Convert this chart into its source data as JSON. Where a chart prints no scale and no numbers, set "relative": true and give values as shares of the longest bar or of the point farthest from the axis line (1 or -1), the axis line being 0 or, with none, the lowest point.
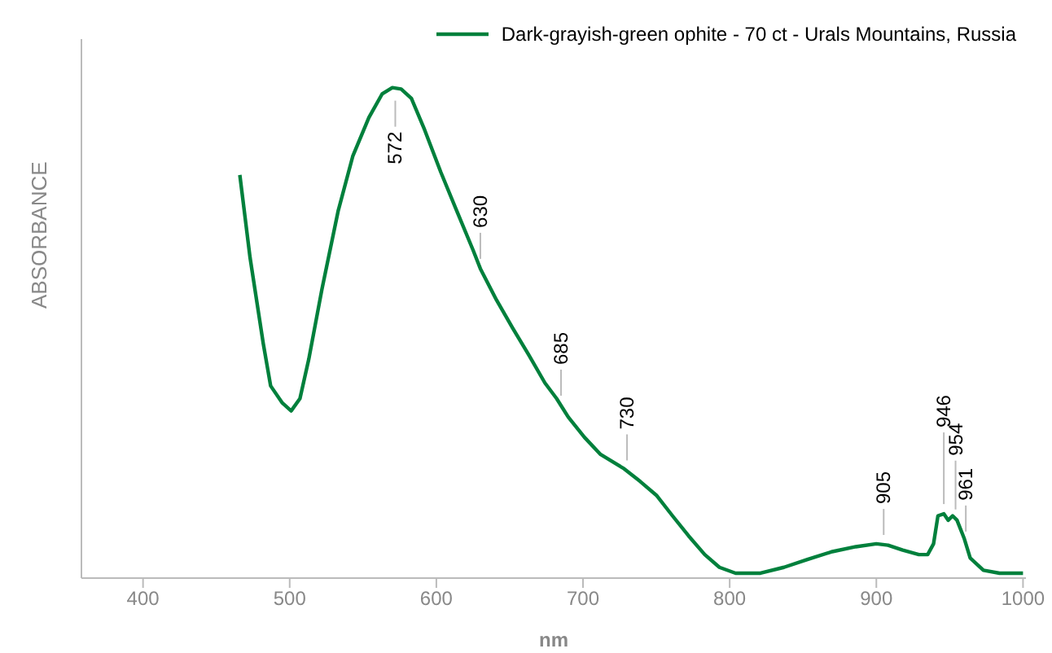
{
  "chart_data": {
    "type": "line",
    "relative": true,
    "xlabel": "nm",
    "ylabel": "ABSORBANCE",
    "xlim": [
      358,
      1002
    ],
    "xticks": [
      400,
      500,
      600,
      700,
      800,
      900,
      1000
    ],
    "legend": "top right",
    "marker": "none",
    "line_style": "solid",
    "series": [
      {
        "name": "Dark-grayish-green ophite - 70 ct - Urals Mountains, Russia",
        "color": "#00803c",
        "x": [
          466,
          473,
          482,
          487,
          495,
          501,
          507,
          513,
          522,
          533,
          543,
          554,
          563,
          570,
          576,
          583,
          592,
          603,
          614,
          625,
          630,
          641,
          652,
          663,
          674,
          682,
          690,
          701,
          712,
          728,
          739,
          750,
          761,
          772,
          783,
          793,
          804,
          821,
          837,
          853,
          870,
          886,
          900,
          908,
          918,
          929,
          935,
          939,
          942,
          946,
          949,
          952,
          955,
          960,
          964,
          973,
          984,
          1000
        ],
        "values": [
          0.822,
          0.653,
          0.478,
          0.392,
          0.357,
          0.341,
          0.366,
          0.446,
          0.589,
          0.748,
          0.86,
          0.939,
          0.987,
          1.0,
          0.997,
          0.978,
          0.914,
          0.828,
          0.748,
          0.669,
          0.631,
          0.567,
          0.51,
          0.455,
          0.398,
          0.366,
          0.328,
          0.287,
          0.252,
          0.223,
          0.197,
          0.169,
          0.127,
          0.086,
          0.048,
          0.022,
          0.01,
          0.01,
          0.022,
          0.038,
          0.054,
          0.064,
          0.07,
          0.067,
          0.057,
          0.048,
          0.048,
          0.07,
          0.127,
          0.131,
          0.118,
          0.127,
          0.118,
          0.08,
          0.041,
          0.016,
          0.01,
          0.01
        ]
      }
    ],
    "annotations": [
      {
        "text": "572",
        "x": 572,
        "y": 1.0
      },
      {
        "text": "630",
        "x": 630,
        "y": 0.631
      },
      {
        "text": "685",
        "x": 685,
        "y": 0.352
      },
      {
        "text": "730",
        "x": 730,
        "y": 0.22
      },
      {
        "text": "905",
        "x": 905,
        "y": 0.068
      },
      {
        "text": "946",
        "x": 946,
        "y": 0.131
      },
      {
        "text": "954",
        "x": 954,
        "y": 0.12
      },
      {
        "text": "961",
        "x": 961,
        "y": 0.075
      }
    ]
  }
}
